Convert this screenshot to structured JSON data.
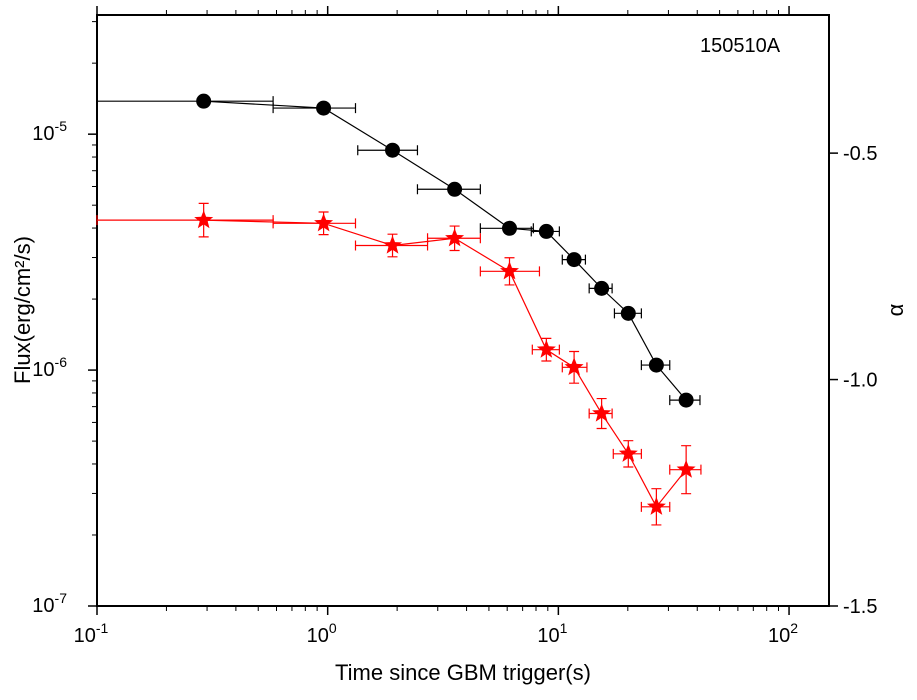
{
  "chart_data": {
    "type": "scatter",
    "annotation": "150510A",
    "xlabel": "Time since GBM trigger(s)",
    "ylabel": "Flux(erg/cm²/s)",
    "y2label": "α",
    "xscale": "log",
    "yscale": "log",
    "xlim": [
      0.1,
      149
    ],
    "ylim": [
      1e-07,
      3.2e-05
    ],
    "y2lim": [
      -1.5,
      -0.195
    ],
    "xticks": [
      {
        "value": 0.1,
        "label": "10",
        "power": "-1"
      },
      {
        "value": 1,
        "label": "10",
        "power": "0"
      },
      {
        "value": 10,
        "label": "10",
        "power": "1"
      },
      {
        "value": 100,
        "label": "10",
        "power": "2"
      }
    ],
    "yticks": [
      {
        "value": 1e-07,
        "label": "10",
        "power": "-7"
      },
      {
        "value": 1e-06,
        "label": "10",
        "power": "-6"
      },
      {
        "value": 1e-05,
        "label": "10",
        "power": "-5"
      }
    ],
    "y2ticks": [
      -1.5,
      {
        "value": -1.0,
        "label": "-1.0"
      },
      -0.5
    ],
    "series": [
      {
        "color": "#000000",
        "marker": "circle",
        "x": [
          0.29,
          0.96,
          1.91,
          3.55,
          6.14,
          8.87,
          11.7,
          15.4,
          20.1,
          26.6,
          35.8
        ],
        "x_lo": [
          0.1,
          0.58,
          1.35,
          2.45,
          4.59,
          7.63,
          10.4,
          13.6,
          17.5,
          22.9,
          30.4
        ],
        "x_hi": [
          0.58,
          1.32,
          2.45,
          4.59,
          7.79,
          10.1,
          13.1,
          17.1,
          22.9,
          30.4,
          41.1
        ],
        "values": [
          1.38e-05,
          1.29e-05,
          8.55e-06,
          5.84e-06,
          3.99e-06,
          3.87e-06,
          2.94e-06,
          2.22e-06,
          1.74e-06,
          1.05e-06,
          7.46e-07
        ]
      },
      {
        "color": "#ff0000",
        "marker": "star",
        "axis": "y2",
        "x": [
          0.29,
          0.96,
          1.91,
          3.55,
          6.14,
          8.87,
          11.7,
          15.4,
          20.1,
          26.6,
          35.8
        ],
        "x_lo": [
          0.1,
          0.58,
          1.32,
          2.71,
          4.59,
          7.71,
          10.4,
          13.6,
          17.3,
          22.9,
          30.4
        ],
        "x_hi": [
          0.58,
          1.32,
          2.71,
          4.59,
          8.28,
          10.1,
          13.3,
          17.1,
          22.9,
          30.4,
          41.5
        ],
        "values": [
          -0.648,
          -0.655,
          -0.704,
          -0.688,
          -0.761,
          -0.934,
          -0.973,
          -1.075,
          -1.164,
          -1.281,
          -1.199
        ],
        "yerr": [
          0.037,
          0.025,
          0.025,
          0.027,
          0.03,
          0.025,
          0.035,
          0.033,
          0.029,
          0.04,
          0.053
        ]
      }
    ]
  }
}
